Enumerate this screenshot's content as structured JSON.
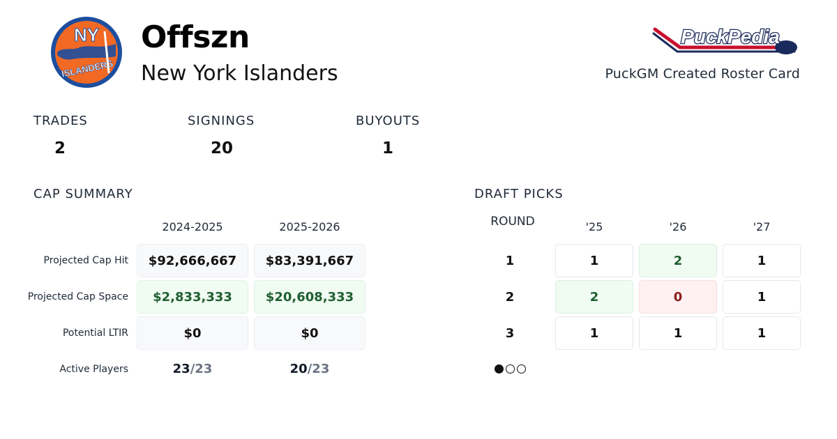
{
  "header": {
    "title": "Offszn",
    "team": "New York Islanders",
    "caption": "PuckGM Created Roster Card",
    "logo_text_top": "NY",
    "logo_text_bottom": "ISLANDERS",
    "brand_text": "PuckPedia",
    "colors": {
      "islanders_blue": "#1d4e9e",
      "islanders_orange": "#f26924",
      "brand_navy": "#1b2a5c",
      "brand_red": "#c8102e"
    }
  },
  "stats": [
    {
      "label": "TRADES",
      "value": "2"
    },
    {
      "label": "SIGNINGS",
      "value": "20"
    },
    {
      "label": "BUYOUTS",
      "value": "1"
    }
  ],
  "cap_summary": {
    "title": "CAP SUMMARY",
    "seasons": [
      "2024-2025",
      "2025-2026"
    ],
    "rows": [
      {
        "label": "Projected Cap Hit",
        "values": [
          "$92,666,667",
          "$83,391,667"
        ],
        "style": "neutral"
      },
      {
        "label": "Projected Cap Space",
        "values": [
          "$2,833,333",
          "$20,608,333"
        ],
        "style": "good"
      },
      {
        "label": "Potential LTIR",
        "values": [
          "$0",
          "$0"
        ],
        "style": "neutral"
      }
    ],
    "active_players": {
      "label": "Active Players",
      "values": [
        {
          "count": "23",
          "max": "/23"
        },
        {
          "count": "20",
          "max": "/23"
        }
      ]
    }
  },
  "draft_picks": {
    "title": "DRAFT PICKS",
    "round_header": "ROUND",
    "years": [
      "'25",
      "'26",
      "'27"
    ],
    "rounds": [
      {
        "round": "1",
        "picks": [
          "1",
          "2",
          "1"
        ],
        "status": [
          "neutral",
          "good",
          "neutral"
        ]
      },
      {
        "round": "2",
        "picks": [
          "2",
          "0",
          "1"
        ],
        "status": [
          "good",
          "bad",
          "neutral"
        ]
      },
      {
        "round": "3",
        "picks": [
          "1",
          "1",
          "1"
        ],
        "status": [
          "neutral",
          "neutral",
          "neutral"
        ]
      }
    ],
    "pager": {
      "current": 1,
      "total": 3
    }
  }
}
